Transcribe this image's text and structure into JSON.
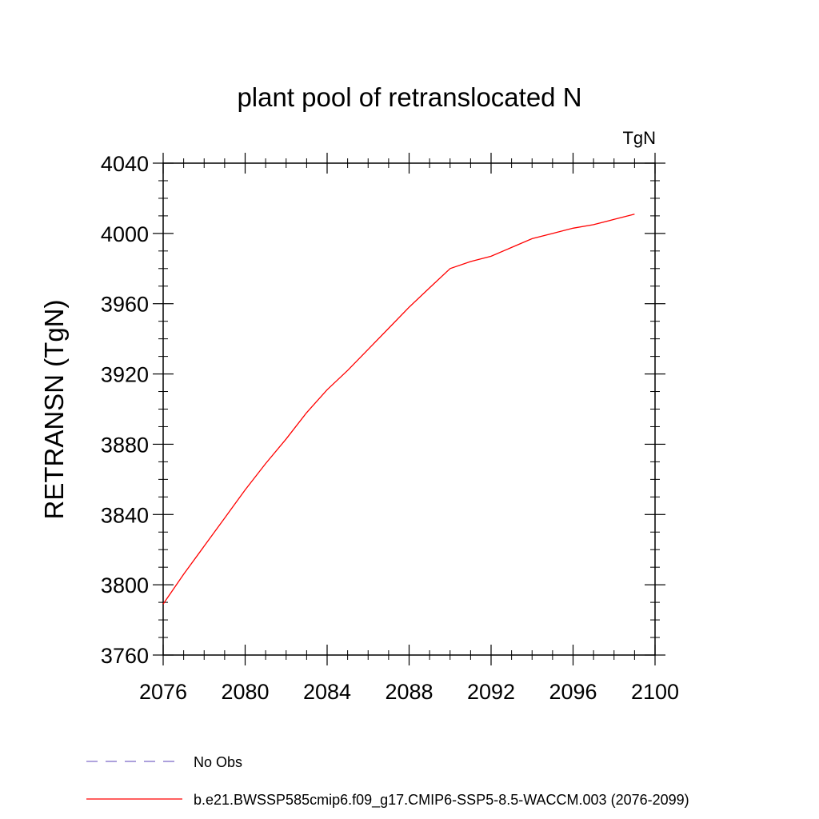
{
  "chart_data": {
    "type": "line",
    "title": "plant pool of retranslocated N",
    "units_label": "TgN",
    "xlabel": "",
    "ylabel": "RETRANSN  (TgN)",
    "xlim": [
      2076,
      2100
    ],
    "ylim": [
      3760,
      4040
    ],
    "x_ticks": [
      2076,
      2080,
      2084,
      2088,
      2092,
      2096,
      2100
    ],
    "y_ticks": [
      3760,
      3800,
      3840,
      3880,
      3920,
      3960,
      4000,
      4040
    ],
    "grid": false,
    "series": [
      {
        "name": "b.e21.BWSSP585cmip6.f09_g17.CMIP6-SSP5-8.5-WACCM.003 (2076-2099)",
        "color": "#ff0000",
        "style": "solid",
        "x": [
          2076,
          2077,
          2078,
          2079,
          2080,
          2081,
          2082,
          2083,
          2084,
          2085,
          2086,
          2087,
          2088,
          2089,
          2090,
          2091,
          2092,
          2093,
          2094,
          2095,
          2096,
          2097,
          2098,
          2099
        ],
        "y": [
          3789,
          3806,
          3822,
          3838,
          3854,
          3869,
          3883,
          3898,
          3911,
          3922,
          3934,
          3946,
          3958,
          3969,
          3980,
          3984,
          3987,
          3992,
          3997,
          4000,
          4003,
          4005,
          4008,
          4011
        ]
      },
      {
        "name": "No Obs",
        "color": "#7b68c8",
        "style": "dashed",
        "x": [],
        "y": []
      }
    ],
    "legend_position": "bottom-left"
  }
}
